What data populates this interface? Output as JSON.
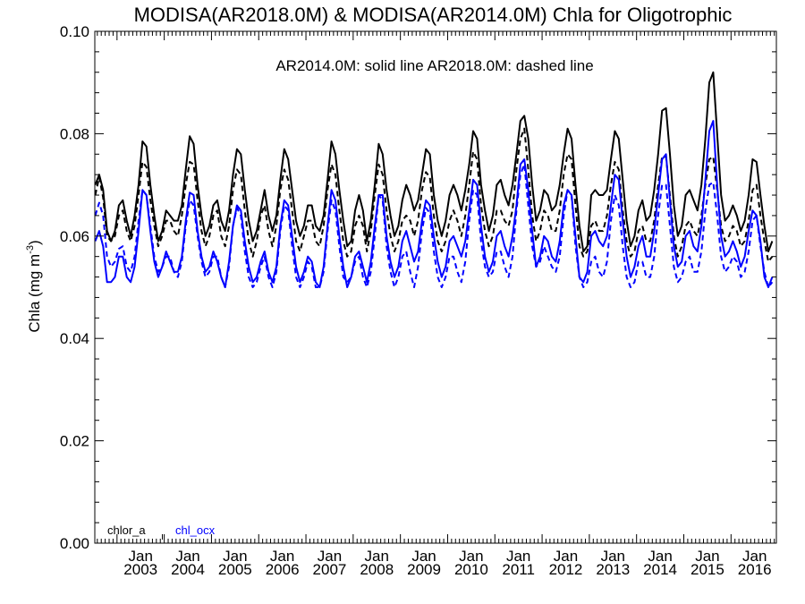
{
  "chart_data": {
    "type": "line",
    "title": "MODISA(AR2018.0M) & MODISA(AR2014.0M)  Chla for Oligotrophic",
    "ylabel": "Chla (mg m",
    "ylabel_sup": "-3",
    "ylabel_close": ")",
    "ylim": [
      0.0,
      0.1
    ],
    "y_ticks": [
      "0.00",
      "0.02",
      "0.04",
      "0.06",
      "0.08",
      "0.10"
    ],
    "x_ticks": [
      {
        "top": "Jan",
        "bottom": "2003",
        "t": 2003.0
      },
      {
        "top": "Jan",
        "bottom": "2004",
        "t": 2004.0
      },
      {
        "top": "Jan",
        "bottom": "2005",
        "t": 2005.0
      },
      {
        "top": "Jan",
        "bottom": "2006",
        "t": 2006.0
      },
      {
        "top": "Jan",
        "bottom": "2007",
        "t": 2007.0
      },
      {
        "top": "Jan",
        "bottom": "2008",
        "t": 2008.0
      },
      {
        "top": "Jan",
        "bottom": "2009",
        "t": 2009.0
      },
      {
        "top": "Jan",
        "bottom": "2010",
        "t": 2010.0
      },
      {
        "top": "Jan",
        "bottom": "2011",
        "t": 2011.0
      },
      {
        "top": "Jan",
        "bottom": "2012",
        "t": 2012.0
      },
      {
        "top": "Jan",
        "bottom": "2013",
        "t": 2013.0
      },
      {
        "top": "Jan",
        "bottom": "2014",
        "t": 2014.0
      },
      {
        "top": "Jan",
        "bottom": "2015",
        "t": 2015.0
      },
      {
        "top": "Jan",
        "bottom": "2016",
        "t": 2016.0
      }
    ],
    "xlim": [
      2002.53,
      2016.96
    ],
    "annotation": "AR2014.0M: solid line   AR2018.0M: dashed line",
    "grid": false,
    "legend_position": "bottom-left",
    "x_start": 2002.54,
    "x_step": 0.0833333,
    "series": [
      {
        "name": "chlor_a",
        "legend": "chlor_a",
        "style": "solid",
        "color": "#000000",
        "values": [
          0.07,
          0.072,
          0.069,
          0.061,
          0.059,
          0.061,
          0.066,
          0.067,
          0.063,
          0.06,
          0.064,
          0.07,
          0.0785,
          0.0775,
          0.07,
          0.064,
          0.059,
          0.061,
          0.065,
          0.064,
          0.063,
          0.063,
          0.066,
          0.073,
          0.0795,
          0.078,
          0.07,
          0.064,
          0.06,
          0.062,
          0.066,
          0.067,
          0.063,
          0.061,
          0.065,
          0.072,
          0.077,
          0.076,
          0.069,
          0.063,
          0.059,
          0.061,
          0.065,
          0.069,
          0.064,
          0.061,
          0.064,
          0.071,
          0.077,
          0.075,
          0.069,
          0.063,
          0.06,
          0.062,
          0.066,
          0.066,
          0.062,
          0.061,
          0.064,
          0.071,
          0.0785,
          0.076,
          0.069,
          0.063,
          0.058,
          0.059,
          0.065,
          0.068,
          0.065,
          0.059,
          0.063,
          0.07,
          0.078,
          0.076,
          0.069,
          0.064,
          0.06,
          0.062,
          0.067,
          0.07,
          0.068,
          0.065,
          0.067,
          0.072,
          0.077,
          0.076,
          0.068,
          0.063,
          0.06,
          0.063,
          0.068,
          0.07,
          0.068,
          0.065,
          0.069,
          0.074,
          0.0805,
          0.079,
          0.07,
          0.065,
          0.061,
          0.064,
          0.07,
          0.071,
          0.068,
          0.066,
          0.07,
          0.076,
          0.0825,
          0.0835,
          0.079,
          0.07,
          0.063,
          0.065,
          0.069,
          0.068,
          0.065,
          0.066,
          0.07,
          0.076,
          0.081,
          0.079,
          0.07,
          0.062,
          0.057,
          0.058,
          0.068,
          0.069,
          0.068,
          0.068,
          0.069,
          0.075,
          0.0805,
          0.079,
          0.071,
          0.063,
          0.058,
          0.06,
          0.065,
          0.067,
          0.063,
          0.064,
          0.069,
          0.076,
          0.0845,
          0.085,
          0.076,
          0.066,
          0.06,
          0.062,
          0.068,
          0.069,
          0.067,
          0.065,
          0.07,
          0.079,
          0.09,
          0.092,
          0.08,
          0.068,
          0.063,
          0.064,
          0.066,
          0.064,
          0.061,
          0.063,
          0.068,
          0.075,
          0.0745,
          0.068,
          0.062,
          0.057,
          0.059
        ]
      },
      {
        "name": "chlor_a AR2018.0M",
        "style": "dashed",
        "color": "#000000",
        "values": [
          0.068,
          0.0715,
          0.0675,
          0.06,
          0.059,
          0.06,
          0.064,
          0.065,
          0.061,
          0.059,
          0.062,
          0.068,
          0.0745,
          0.0735,
          0.067,
          0.062,
          0.058,
          0.06,
          0.063,
          0.063,
          0.061,
          0.06,
          0.064,
          0.07,
          0.0745,
          0.074,
          0.067,
          0.061,
          0.058,
          0.06,
          0.064,
          0.065,
          0.06,
          0.058,
          0.062,
          0.069,
          0.073,
          0.072,
          0.065,
          0.059,
          0.056,
          0.059,
          0.064,
          0.066,
          0.061,
          0.058,
          0.062,
          0.069,
          0.073,
          0.071,
          0.065,
          0.059,
          0.057,
          0.06,
          0.063,
          0.063,
          0.059,
          0.058,
          0.062,
          0.069,
          0.074,
          0.072,
          0.065,
          0.059,
          0.056,
          0.057,
          0.062,
          0.064,
          0.062,
          0.057,
          0.061,
          0.068,
          0.074,
          0.072,
          0.065,
          0.06,
          0.057,
          0.059,
          0.063,
          0.064,
          0.063,
          0.06,
          0.063,
          0.069,
          0.0725,
          0.0715,
          0.064,
          0.059,
          0.057,
          0.059,
          0.063,
          0.065,
          0.063,
          0.06,
          0.064,
          0.07,
          0.0765,
          0.075,
          0.066,
          0.061,
          0.058,
          0.06,
          0.065,
          0.065,
          0.063,
          0.062,
          0.065,
          0.073,
          0.079,
          0.081,
          0.073,
          0.064,
          0.059,
          0.061,
          0.065,
          0.064,
          0.061,
          0.061,
          0.065,
          0.072,
          0.076,
          0.075,
          0.066,
          0.058,
          0.056,
          0.057,
          0.062,
          0.063,
          0.061,
          0.061,
          0.064,
          0.07,
          0.0745,
          0.073,
          0.065,
          0.059,
          0.056,
          0.057,
          0.061,
          0.062,
          0.059,
          0.059,
          0.063,
          0.07,
          0.0755,
          0.0755,
          0.068,
          0.06,
          0.056,
          0.058,
          0.062,
          0.063,
          0.061,
          0.06,
          0.064,
          0.07,
          0.075,
          0.0755,
          0.069,
          0.062,
          0.059,
          0.06,
          0.062,
          0.061,
          0.058,
          0.059,
          0.063,
          0.069,
          0.07,
          0.064,
          0.059,
          0.055,
          0.056
        ]
      },
      {
        "name": "chl_ocx",
        "legend": "chl_ocx",
        "style": "solid",
        "color": "#0000ff",
        "values": [
          0.059,
          0.061,
          0.058,
          0.051,
          0.051,
          0.052,
          0.056,
          0.056,
          0.052,
          0.051,
          0.054,
          0.061,
          0.069,
          0.068,
          0.061,
          0.055,
          0.052,
          0.054,
          0.057,
          0.055,
          0.053,
          0.053,
          0.056,
          0.063,
          0.0685,
          0.068,
          0.061,
          0.056,
          0.053,
          0.054,
          0.057,
          0.055,
          0.052,
          0.05,
          0.055,
          0.062,
          0.066,
          0.065,
          0.059,
          0.054,
          0.051,
          0.052,
          0.055,
          0.057,
          0.053,
          0.051,
          0.054,
          0.062,
          0.067,
          0.066,
          0.06,
          0.054,
          0.051,
          0.053,
          0.056,
          0.055,
          0.051,
          0.05,
          0.054,
          0.062,
          0.069,
          0.067,
          0.06,
          0.054,
          0.05,
          0.052,
          0.056,
          0.057,
          0.054,
          0.051,
          0.055,
          0.062,
          0.068,
          0.068,
          0.06,
          0.055,
          0.052,
          0.054,
          0.059,
          0.061,
          0.058,
          0.055,
          0.057,
          0.063,
          0.067,
          0.066,
          0.06,
          0.055,
          0.052,
          0.054,
          0.059,
          0.06,
          0.058,
          0.056,
          0.059,
          0.065,
          0.071,
          0.07,
          0.062,
          0.056,
          0.053,
          0.055,
          0.06,
          0.061,
          0.058,
          0.056,
          0.06,
          0.066,
          0.074,
          0.075,
          0.069,
          0.061,
          0.054,
          0.056,
          0.06,
          0.059,
          0.056,
          0.055,
          0.059,
          0.066,
          0.069,
          0.068,
          0.06,
          0.052,
          0.051,
          0.053,
          0.06,
          0.061,
          0.059,
          0.058,
          0.06,
          0.066,
          0.072,
          0.071,
          0.063,
          0.056,
          0.052,
          0.054,
          0.058,
          0.06,
          0.056,
          0.056,
          0.061,
          0.068,
          0.075,
          0.076,
          0.067,
          0.058,
          0.054,
          0.055,
          0.06,
          0.061,
          0.058,
          0.057,
          0.062,
          0.071,
          0.0805,
          0.0825,
          0.07,
          0.06,
          0.056,
          0.057,
          0.059,
          0.057,
          0.054,
          0.056,
          0.061,
          0.065,
          0.064,
          0.059,
          0.052,
          0.05,
          0.052
        ]
      },
      {
        "name": "chl_ocx AR2018.0M",
        "style": "dashed",
        "color": "#0000ff",
        "values": [
          0.064,
          0.0665,
          0.064,
          0.056,
          0.054,
          0.055,
          0.0575,
          0.058,
          0.054,
          0.053,
          0.056,
          0.063,
          0.069,
          0.068,
          0.062,
          0.056,
          0.053,
          0.054,
          0.056,
          0.056,
          0.053,
          0.052,
          0.055,
          0.062,
          0.067,
          0.066,
          0.06,
          0.055,
          0.052,
          0.053,
          0.056,
          0.056,
          0.052,
          0.05,
          0.054,
          0.062,
          0.0655,
          0.064,
          0.057,
          0.052,
          0.05,
          0.051,
          0.054,
          0.056,
          0.052,
          0.05,
          0.053,
          0.061,
          0.066,
          0.065,
          0.058,
          0.052,
          0.05,
          0.052,
          0.055,
          0.054,
          0.05,
          0.05,
          0.053,
          0.061,
          0.067,
          0.065,
          0.058,
          0.052,
          0.051,
          0.052,
          0.055,
          0.056,
          0.052,
          0.05,
          0.053,
          0.06,
          0.068,
          0.067,
          0.058,
          0.053,
          0.05,
          0.052,
          0.056,
          0.057,
          0.053,
          0.05,
          0.054,
          0.061,
          0.0655,
          0.0645,
          0.057,
          0.052,
          0.05,
          0.052,
          0.056,
          0.056,
          0.053,
          0.051,
          0.055,
          0.063,
          0.069,
          0.068,
          0.059,
          0.054,
          0.052,
          0.053,
          0.057,
          0.057,
          0.054,
          0.052,
          0.056,
          0.065,
          0.072,
          0.074,
          0.066,
          0.058,
          0.054,
          0.055,
          0.058,
          0.056,
          0.054,
          0.053,
          0.056,
          0.064,
          0.069,
          0.068,
          0.058,
          0.052,
          0.05,
          0.051,
          0.055,
          0.056,
          0.053,
          0.052,
          0.055,
          0.063,
          0.068,
          0.066,
          0.058,
          0.052,
          0.05,
          0.051,
          0.055,
          0.055,
          0.052,
          0.052,
          0.056,
          0.064,
          0.07,
          0.07,
          0.062,
          0.054,
          0.051,
          0.052,
          0.055,
          0.056,
          0.053,
          0.053,
          0.057,
          0.065,
          0.07,
          0.0705,
          0.064,
          0.056,
          0.053,
          0.054,
          0.056,
          0.055,
          0.052,
          0.053,
          0.057,
          0.063,
          0.064,
          0.058,
          0.053,
          0.05,
          0.051
        ]
      }
    ]
  }
}
